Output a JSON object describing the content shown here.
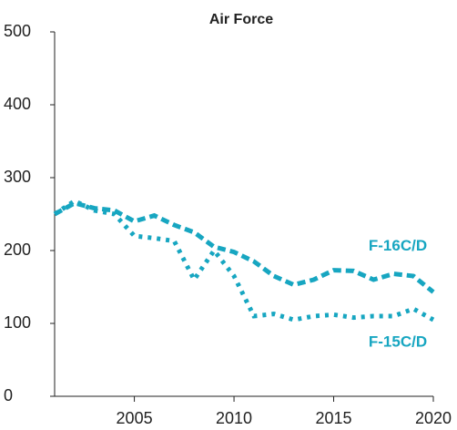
{
  "chart_data": {
    "type": "line",
    "title": "Air Force",
    "x": [
      2001,
      2002,
      2003,
      2004,
      2005,
      2006,
      2007,
      2008,
      2009,
      2010,
      2011,
      2012,
      2013,
      2014,
      2015,
      2016,
      2017,
      2018,
      2019,
      2020
    ],
    "series": [
      {
        "name": "F-16C/D",
        "color": "#17a6c1",
        "values": [
          250,
          265,
          258,
          255,
          240,
          248,
          235,
          225,
          205,
          198,
          185,
          165,
          153,
          160,
          173,
          172,
          160,
          168,
          165,
          143
        ]
      },
      {
        "name": "F-15C/D",
        "color": "#17a6c1",
        "values": [
          250,
          268,
          255,
          250,
          220,
          217,
          213,
          160,
          200,
          165,
          110,
          113,
          105,
          110,
          112,
          108,
          110,
          110,
          120,
          105
        ]
      }
    ],
    "xlim": [
      2001,
      2020
    ],
    "xticks": [
      2005,
      2010,
      2015,
      2020
    ],
    "ylim": [
      0,
      500
    ],
    "yticks": [
      0,
      100,
      200,
      300,
      400,
      500
    ]
  }
}
